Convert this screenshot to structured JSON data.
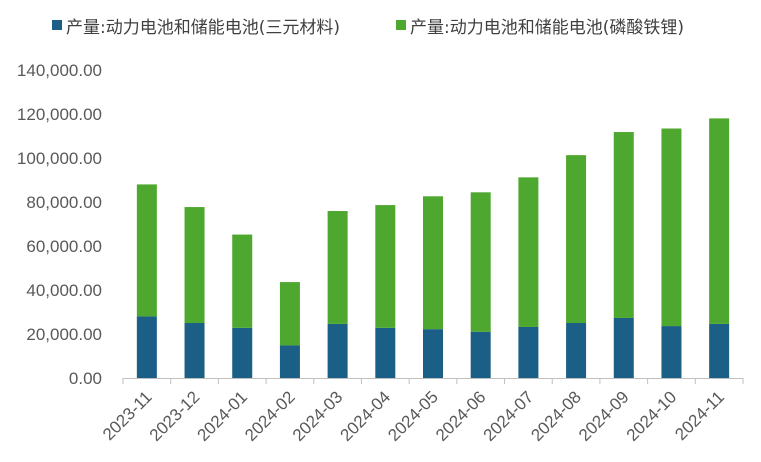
{
  "chart_data": {
    "type": "bar",
    "stacked": true,
    "title": "",
    "xlabel": "",
    "ylabel": "",
    "ylim": [
      0,
      140000
    ],
    "y_ticks": [
      0,
      20000,
      40000,
      60000,
      80000,
      100000,
      120000,
      140000
    ],
    "y_tick_labels": [
      "0.00",
      "20,000.00",
      "40,000.00",
      "60,000.00",
      "80,000.00",
      "100,000.00",
      "120,000.00",
      "140,000.00"
    ],
    "grid": false,
    "legend_position": "top",
    "categories": [
      "2023-11",
      "2023-12",
      "2024-01",
      "2024-02",
      "2024-03",
      "2024-04",
      "2024-05",
      "2024-06",
      "2024-07",
      "2024-08",
      "2024-09",
      "2024-10",
      "2024-11"
    ],
    "series": [
      {
        "name": "产量:动力电池和储能电池(三元材料)",
        "color": "#1b5e86",
        "values": [
          28000,
          25000,
          22800,
          14800,
          24600,
          22800,
          22200,
          21000,
          23200,
          25000,
          27300,
          23600,
          24600
        ]
      },
      {
        "name": "产量:动力电池和储能电池(磷酸铁锂)",
        "color": "#4ea72e",
        "values": [
          60000,
          52700,
          42400,
          28800,
          51300,
          55800,
          60400,
          63400,
          68000,
          76300,
          84500,
          89800,
          93400
        ]
      }
    ]
  },
  "colors": {
    "axis": "#bfbfbf",
    "tick_text": "#595959"
  }
}
